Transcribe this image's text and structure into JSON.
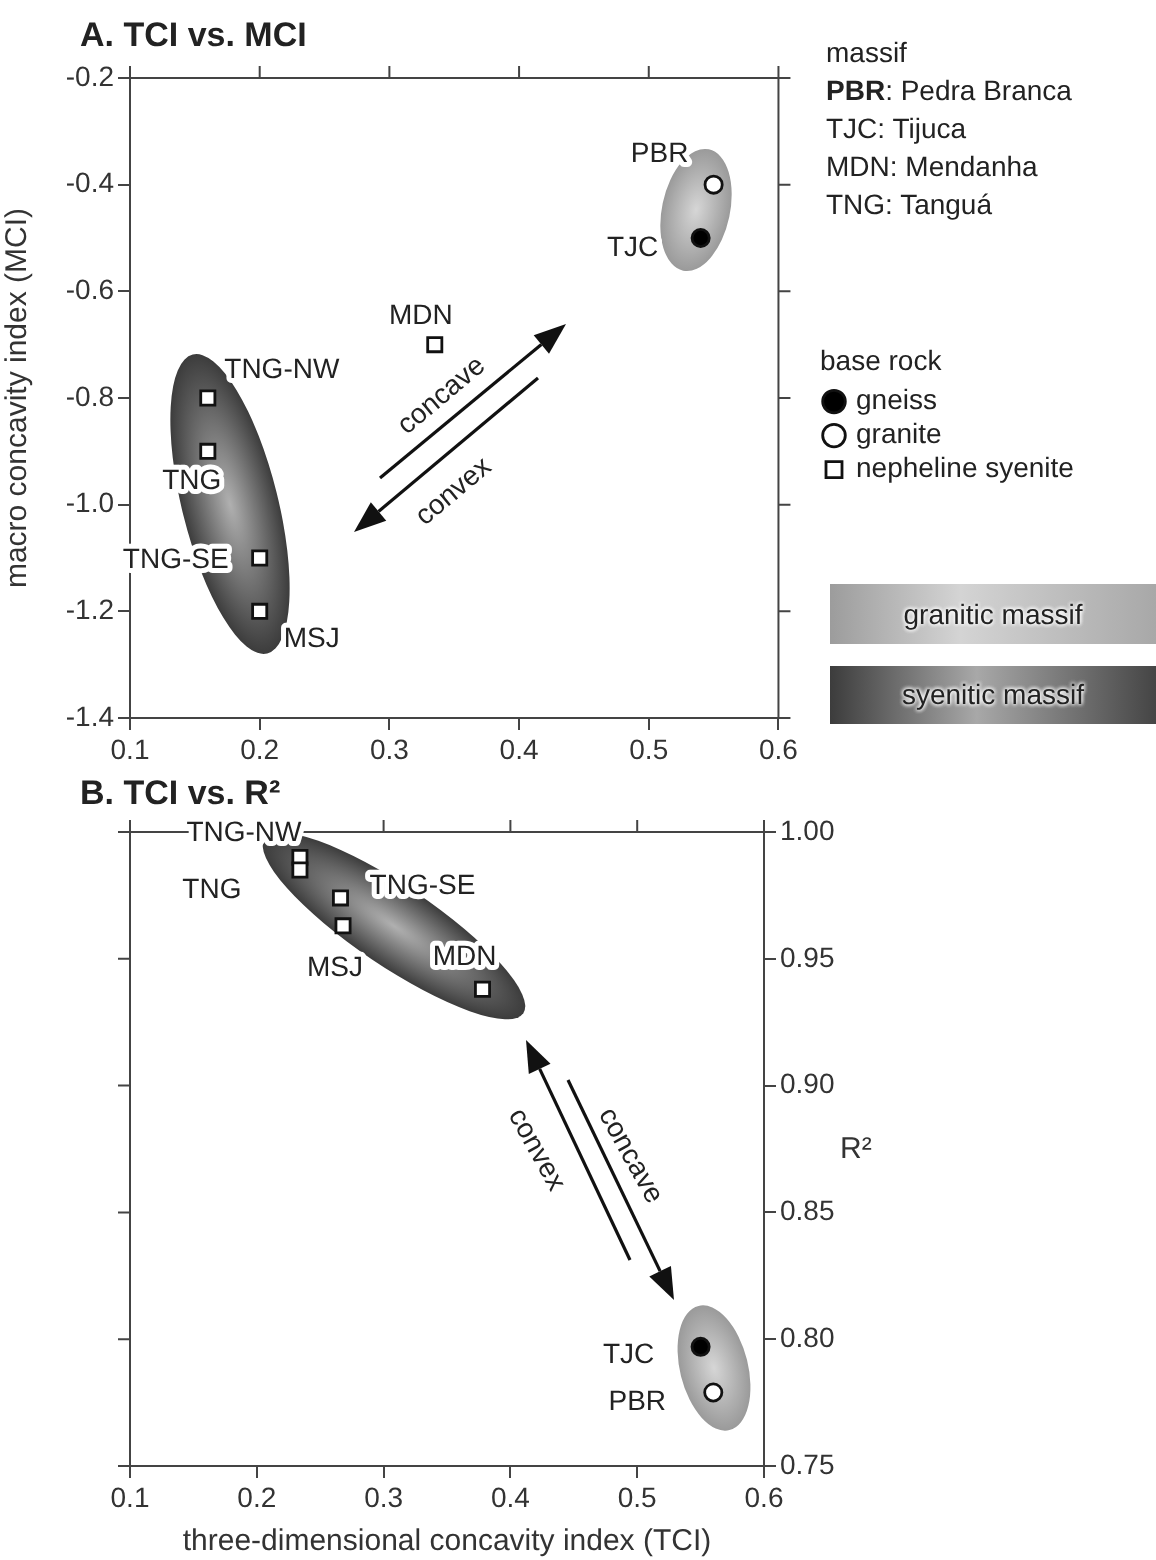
{
  "chart_data": [
    {
      "type": "scatter",
      "title": "A. TCI vs. MCI",
      "ylabel": "macro concavity index (MCI)",
      "legend": "right",
      "legend_title": "base rock",
      "xlim": [
        0.1,
        0.6
      ],
      "xticks": [
        0.1,
        0.2,
        0.3,
        0.4,
        0.5,
        0.6
      ],
      "ylim": [
        -1.4,
        -0.2
      ],
      "yticks": [
        -1.4,
        -1.2,
        {
          "value": -1,
          "label": "-1.0"
        },
        -0.8,
        -0.6,
        -0.4,
        -0.2
      ],
      "series": [
        {
          "name": "gneiss",
          "color": "#000000",
          "marker": "circle",
          "x": [
            0.54
          ],
          "values": [
            -0.5
          ]
        },
        {
          "name": "granite",
          "color": "#ffffff",
          "marker": "circle",
          "x": [
            0.55
          ],
          "values": [
            -0.4
          ]
        },
        {
          "name": "nepheline syenite",
          "color": "#ffffff",
          "marker": "square",
          "x": [
            0.335,
            0.16,
            0.16,
            0.2,
            0.2
          ],
          "values": [
            -0.7,
            -0.8,
            -0.9,
            -1.1,
            -1.2
          ]
        }
      ],
      "annotations": [
        {
          "text": "PBR",
          "x": 0.55,
          "y": -0.4
        },
        {
          "text": "TJC",
          "x": 0.54,
          "y": -0.5
        },
        {
          "text": "MDN",
          "x": 0.335,
          "y": -0.7
        },
        {
          "text": "TNG-NW",
          "x": 0.16,
          "y": -0.8
        },
        {
          "text": "TNG",
          "x": 0.16,
          "y": -0.9
        },
        {
          "text": "TNG-SE",
          "x": 0.2,
          "y": -1.1
        },
        {
          "text": "MSJ",
          "x": 0.2,
          "y": -1.2
        },
        "concave",
        "convex",
        "massif",
        "PBR: Pedra Branca",
        "TJC: Tijuca",
        "MDN: Mendanha",
        "TNG: Tanguá",
        "granitic massif",
        "syenitic massif"
      ]
    },
    {
      "type": "scatter",
      "title": "B. TCI vs. R²",
      "xlabel": "three-dimensional concavity index (TCI)",
      "ylabel": "R²",
      "xlim": [
        0.1,
        0.6
      ],
      "xticks": [
        0.1,
        0.2,
        0.3,
        0.4,
        0.5,
        0.6
      ],
      "ylim": [
        0.75,
        1.0
      ],
      "yticks": [
        {
          "value": 0.75,
          "label": "0.75"
        },
        {
          "value": 0.8,
          "label": "0.80"
        },
        {
          "value": 0.85,
          "label": "0.85"
        },
        {
          "value": 0.9,
          "label": "0.90"
        },
        {
          "value": 0.95,
          "label": "0.95"
        },
        {
          "value": 1,
          "label": "1.00"
        }
      ],
      "series": [
        {
          "color": "#000000",
          "marker": "circle",
          "x": [
            0.55
          ],
          "values": [
            0.797
          ]
        },
        {
          "color": "#ffffff",
          "marker": "circle",
          "x": [
            0.56
          ],
          "values": [
            0.779
          ]
        },
        {
          "color": "#ffffff",
          "marker": "square",
          "x": [
            0.234,
            0.234,
            0.266,
            0.268,
            0.378
          ],
          "values": [
            0.99,
            0.985,
            0.974,
            0.963,
            0.938
          ]
        }
      ],
      "annotations": [
        {
          "text": "TNG-NW",
          "x": 0.234,
          "y": 0.99
        },
        {
          "text": "TNG",
          "x": 0.234,
          "y": 0.985
        },
        {
          "text": "TNG-SE",
          "x": 0.266,
          "y": 0.974
        },
        {
          "text": "MSJ",
          "x": 0.268,
          "y": 0.963
        },
        {
          "text": "MDN",
          "x": 0.378,
          "y": 0.938
        },
        {
          "text": "TJC",
          "x": 0.55,
          "y": 0.797
        },
        {
          "text": "PBR",
          "x": 0.56,
          "y": 0.779
        },
        "convex",
        "concave"
      ]
    }
  ]
}
